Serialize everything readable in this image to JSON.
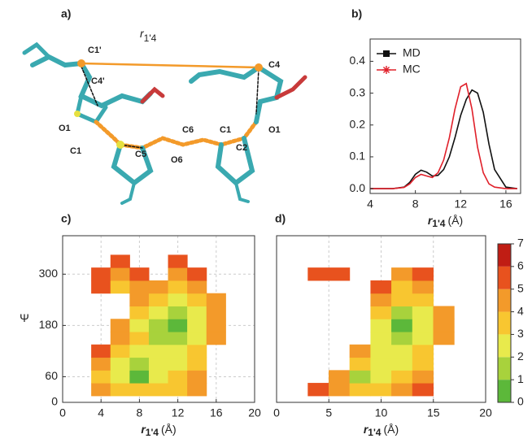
{
  "molecule": {
    "panel_label": "a)",
    "atom_labels": [
      "C1'",
      "C4'",
      "O1",
      "C1",
      "C5",
      "C6",
      "O6",
      "C1",
      "C2",
      "O1",
      "C4"
    ],
    "distance_label": {
      "symbol": "r",
      "subscript": "1'4"
    }
  },
  "chart_data": [
    {
      "type": "line",
      "panel_label": "b)",
      "x": [
        4,
        5,
        6,
        7,
        7.5,
        8,
        8.5,
        9,
        9.5,
        10,
        10.5,
        11,
        11.5,
        12,
        12.5,
        13,
        13.5,
        14,
        14.5,
        15,
        16,
        17
      ],
      "series": [
        {
          "name": "MD",
          "color": "#111111",
          "marker": "square",
          "values": [
            0,
            0,
            0,
            0.005,
            0.02,
            0.045,
            0.058,
            0.052,
            0.04,
            0.042,
            0.06,
            0.1,
            0.16,
            0.23,
            0.28,
            0.31,
            0.3,
            0.24,
            0.14,
            0.06,
            0.005,
            0
          ]
        },
        {
          "name": "MC",
          "color": "#e0202a",
          "marker": "star",
          "values": [
            0,
            0,
            0,
            0.004,
            0.015,
            0.035,
            0.045,
            0.04,
            0.035,
            0.05,
            0.09,
            0.16,
            0.25,
            0.32,
            0.33,
            0.25,
            0.13,
            0.05,
            0.015,
            0.005,
            0,
            0
          ]
        }
      ],
      "xlim": [
        4,
        17.3
      ],
      "ylim": [
        -0.015,
        0.47
      ],
      "xticks": [
        4,
        8,
        12,
        16
      ],
      "yticks": [
        {
          "value": 0,
          "label": "0.0"
        },
        0.1,
        0.2,
        0.3,
        0.4
      ],
      "xlabel": {
        "symbol": "r",
        "subscript": "1'4",
        "unit": "(Å)"
      },
      "legend": "upper left"
    },
    {
      "type": "contour",
      "panel_label": "c)",
      "x": [
        2,
        4,
        6,
        8,
        10,
        12,
        14,
        16,
        18
      ],
      "y": [
        0,
        30,
        60,
        90,
        120,
        150,
        180,
        210,
        240,
        270,
        300,
        330,
        360
      ],
      "z": [
        [
          null,
          null,
          null,
          null,
          null,
          null,
          null,
          null,
          null
        ],
        [
          null,
          4,
          3.5,
          3,
          3,
          3.5,
          4.5,
          null,
          null
        ],
        [
          null,
          3.5,
          2,
          0.5,
          2,
          3,
          4,
          null,
          null
        ],
        [
          null,
          4,
          2.5,
          1.5,
          2.5,
          2.5,
          3.5,
          null,
          null
        ],
        [
          null,
          5,
          3,
          2.5,
          2.5,
          2,
          3,
          null,
          null
        ],
        [
          null,
          null,
          4,
          3,
          1.5,
          1,
          2.5,
          4.5,
          null
        ],
        [
          null,
          null,
          4.5,
          2.5,
          1.5,
          0.5,
          2,
          4,
          null
        ],
        [
          null,
          null,
          null,
          3,
          2,
          1,
          2.5,
          4,
          null
        ],
        [
          null,
          null,
          null,
          4,
          3,
          2.5,
          3,
          4.5,
          null
        ],
        [
          null,
          5,
          3.5,
          4,
          4.5,
          3.5,
          4,
          null,
          null
        ],
        [
          null,
          5,
          4,
          5,
          null,
          4.5,
          5,
          null,
          null
        ],
        [
          null,
          null,
          5.5,
          null,
          null,
          5.5,
          null,
          null,
          null
        ],
        [
          null,
          null,
          null,
          null,
          null,
          null,
          null,
          null,
          null
        ]
      ],
      "colors": [
        "#5cb83a",
        "#a8d23c",
        "#e8ea4c",
        "#f8c630",
        "#f39a2a",
        "#e8521e",
        "#c01d14"
      ],
      "xlim": [
        0,
        20
      ],
      "ylim": [
        0,
        390
      ],
      "xticks": [
        0,
        4,
        8,
        12,
        16,
        20
      ],
      "yticks": [
        0,
        60,
        180,
        300
      ],
      "xlabel": {
        "symbol": "r",
        "subscript": "1'4",
        "unit": "(Å)"
      },
      "ylabel": "Ψ",
      "grid": true
    },
    {
      "type": "contour",
      "panel_label": "d)",
      "x": [
        2,
        4,
        6,
        8,
        10,
        12,
        14,
        16,
        18
      ],
      "y": [
        0,
        30,
        60,
        90,
        120,
        150,
        180,
        210,
        240,
        270,
        300,
        330,
        360
      ],
      "z": [
        [
          null,
          null,
          null,
          null,
          null,
          null,
          null,
          null,
          null
        ],
        [
          null,
          5,
          4,
          3.5,
          3,
          4,
          5,
          null,
          null
        ],
        [
          null,
          null,
          4,
          1.5,
          2.5,
          3,
          4,
          null,
          null
        ],
        [
          null,
          null,
          null,
          3.5,
          2.5,
          2.5,
          3.5,
          null,
          null
        ],
        [
          null,
          null,
          null,
          4,
          2,
          2,
          3,
          null,
          null
        ],
        [
          null,
          null,
          null,
          null,
          2,
          1,
          2.5,
          4.5,
          null
        ],
        [
          null,
          null,
          null,
          null,
          2.5,
          0.5,
          2,
          4,
          null
        ],
        [
          null,
          null,
          null,
          null,
          3.5,
          1.5,
          2.5,
          4.5,
          null
        ],
        [
          null,
          null,
          null,
          null,
          4,
          3,
          3,
          null,
          null
        ],
        [
          null,
          null,
          null,
          null,
          5,
          3.5,
          4.5,
          null,
          null
        ],
        [
          null,
          5.5,
          5,
          null,
          null,
          4.5,
          5.5,
          null,
          null
        ],
        [
          null,
          null,
          null,
          null,
          null,
          null,
          null,
          null,
          null
        ],
        [
          null,
          null,
          null,
          null,
          null,
          null,
          null,
          null,
          null
        ]
      ],
      "colors": [
        "#5cb83a",
        "#a8d23c",
        "#e8ea4c",
        "#f8c630",
        "#f39a2a",
        "#e8521e",
        "#c01d14"
      ],
      "xlim": [
        0,
        20
      ],
      "ylim": [
        0,
        390
      ],
      "xticks": [
        0,
        5,
        10,
        15,
        20
      ],
      "xlabel": {
        "symbol": "r",
        "subscript": "1'4",
        "unit": "(Å)"
      },
      "grid": true,
      "colorbar": {
        "ticks": [
          0,
          1,
          2,
          3,
          4,
          5,
          6,
          7
        ]
      }
    }
  ]
}
